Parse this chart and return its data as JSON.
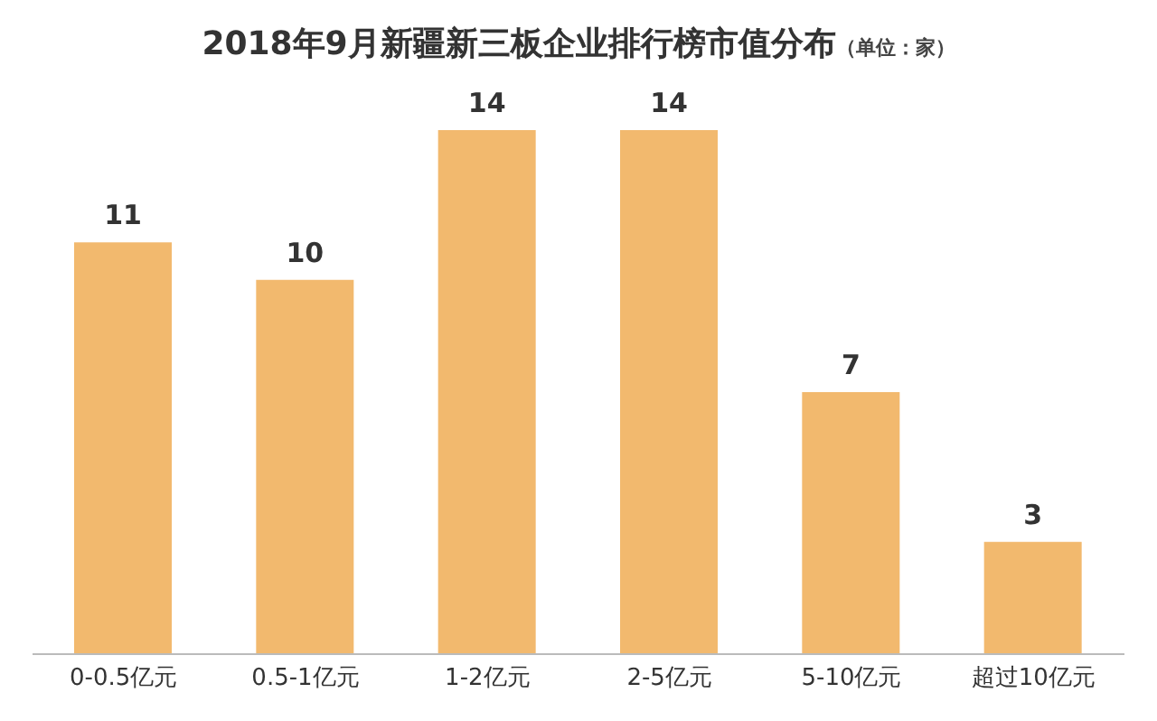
{
  "chart_data": {
    "type": "bar",
    "title": "2018年9月新疆新三板企业排行榜市值分布",
    "subtitle": "（单位：家）",
    "categories": [
      "0-0.5亿元",
      "0.5-1亿元",
      "1-2亿元",
      "2-5亿元",
      "5-10亿元",
      "超过10亿元"
    ],
    "values": [
      11,
      10,
      14,
      14,
      7,
      3
    ],
    "color": "#f2b96e",
    "data_labels": true
  }
}
